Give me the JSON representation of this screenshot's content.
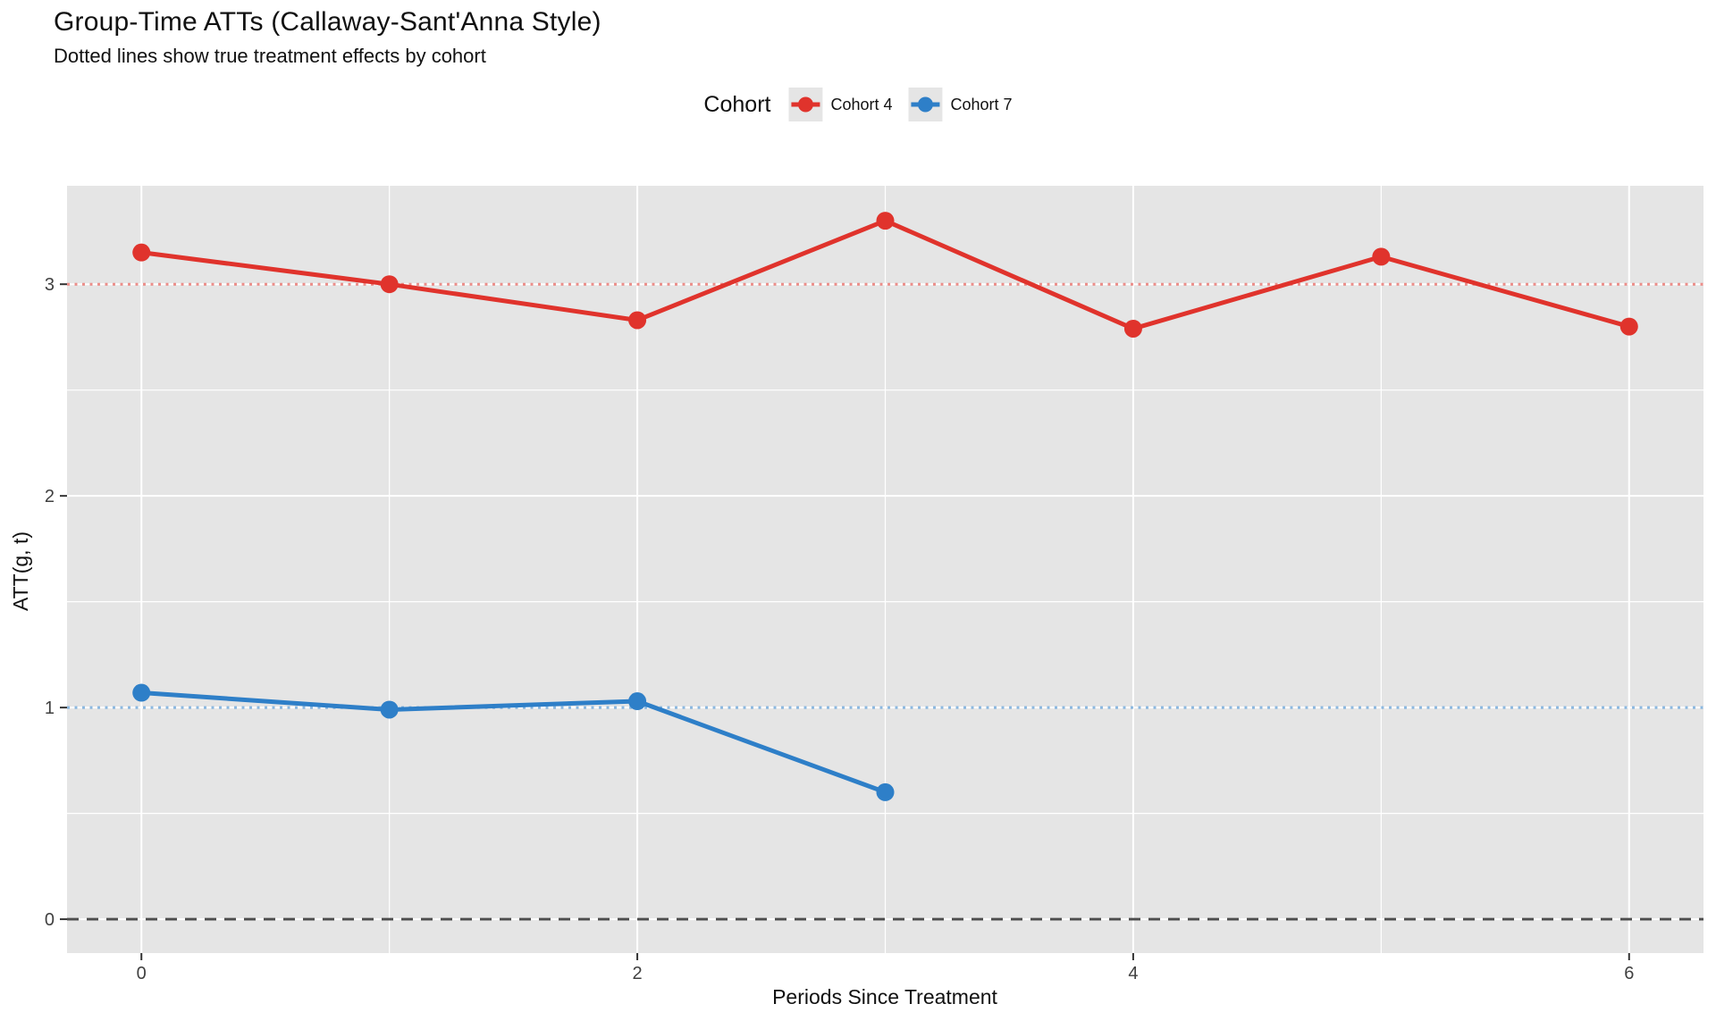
{
  "header": {},
  "legend": {
    "title": "Cohort",
    "position": "top-center"
  },
  "chart_data": {
    "type": "line",
    "title": "Group-Time ATTs (Callaway-Sant'Anna Style)",
    "subtitle": "Dotted lines show true treatment effects by cohort",
    "xlabel": "Periods Since Treatment",
    "ylabel": "ATT(g, t)",
    "xlim": [
      -0.3,
      6.3
    ],
    "ylim": [
      -0.16,
      3.465
    ],
    "x_major_ticks": [
      0,
      2,
      4,
      6
    ],
    "x_minor_gridlines": [
      1,
      3,
      5
    ],
    "y_major_ticks": [
      0,
      1,
      2,
      3
    ],
    "y_minor_gridlines": [
      0.5,
      1.5,
      2.5
    ],
    "panel_background": "#E5E5E5",
    "gridline_color": "#FFFFFF",
    "axis_text_color": "#404040",
    "series": [
      {
        "name": "Cohort 4",
        "color": "#E0332C",
        "x": [
          0,
          1,
          2,
          3,
          4,
          5,
          6
        ],
        "values": [
          3.15,
          3.0,
          2.83,
          3.3,
          2.79,
          3.13,
          2.8
        ]
      },
      {
        "name": "Cohort 7",
        "color": "#2E7FC8",
        "x": [
          0,
          1,
          2,
          3
        ],
        "values": [
          1.07,
          0.99,
          1.03,
          0.6
        ]
      }
    ],
    "reference_lines": [
      {
        "label": "true-effect-cohort-4",
        "y": 3,
        "color": "#E0332C",
        "style": "dotted",
        "opacity": 0.55
      },
      {
        "label": "true-effect-cohort-7",
        "y": 1,
        "color": "#2E7FC8",
        "style": "dotted",
        "opacity": 0.55
      },
      {
        "label": "zero-line",
        "y": 0,
        "color": "#4D4D4D",
        "style": "dashed",
        "opacity": 1
      }
    ]
  }
}
